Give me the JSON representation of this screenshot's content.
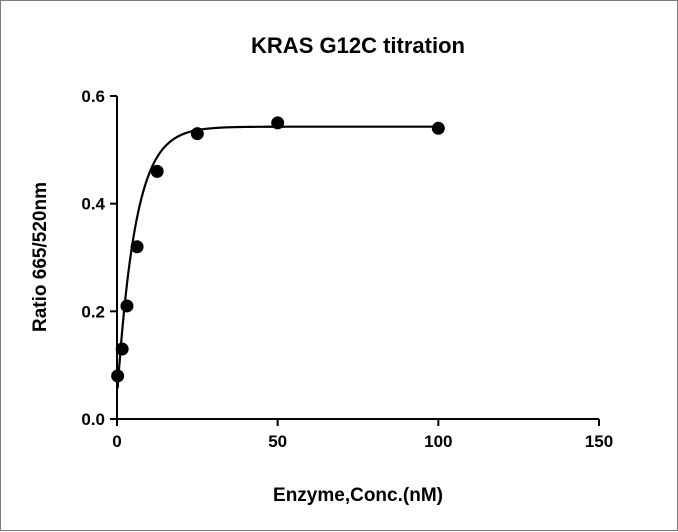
{
  "chart_data": {
    "type": "scatter",
    "title": "KRAS G12C titration",
    "xlabel": "Enzyme,Conc.(nM)",
    "ylabel": "Ratio 665/520nm",
    "xlim": [
      0,
      150
    ],
    "ylim": [
      0,
      0.6
    ],
    "xticks": [
      "0",
      "50",
      "100",
      "150"
    ],
    "yticks": [
      "0.0",
      "0.2",
      "0.4",
      "0.6"
    ],
    "grid": false,
    "legend": "none",
    "colors": {
      "points": "#000000",
      "curve": "#000000",
      "axes": "#000000"
    },
    "series": [
      {
        "points": [
          {
            "x": 0.2,
            "y": 0.08
          },
          {
            "x": 1.6,
            "y": 0.13
          },
          {
            "x": 3.1,
            "y": 0.21
          },
          {
            "x": 6.25,
            "y": 0.32
          },
          {
            "x": 12.5,
            "y": 0.46
          },
          {
            "x": 25,
            "y": 0.53
          },
          {
            "x": 50,
            "y": 0.55
          },
          {
            "x": 100,
            "y": 0.54
          }
        ],
        "fit": {
          "model": "one-phase association",
          "y0": 0.04,
          "plateau": 0.543,
          "k": 0.175
        }
      }
    ]
  }
}
